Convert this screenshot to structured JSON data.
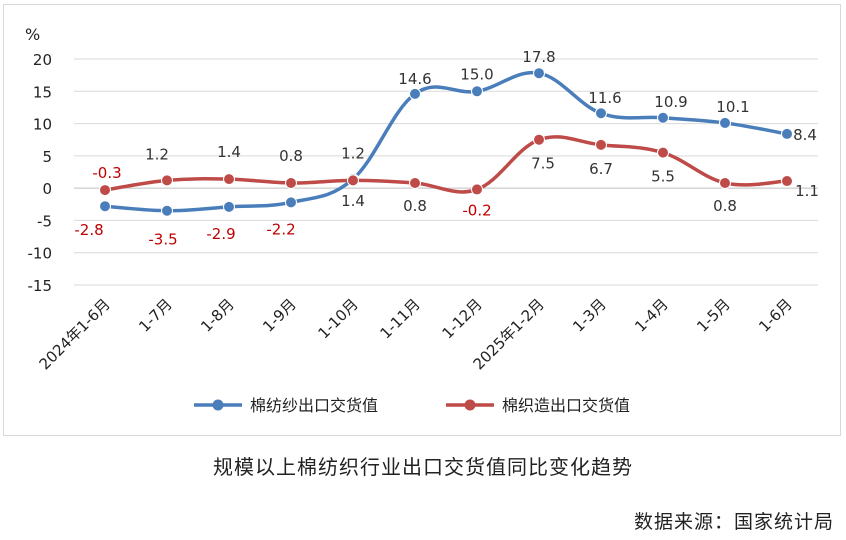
{
  "chart_data": {
    "type": "line",
    "ylabel": "%",
    "ylim": [
      -15,
      20
    ],
    "yticks": [
      20,
      15,
      10,
      5,
      0,
      -5,
      -10,
      -15
    ],
    "grid": "horizontal",
    "legend_position": "bottom",
    "categories": [
      "2024年1-6月",
      "1-7月",
      "1-8月",
      "1-9月",
      "1-10月",
      "1-11月",
      "1-12月",
      "2025年1-2月",
      "1-3月",
      "1-4月",
      "1-5月",
      "1-6月"
    ],
    "series": [
      {
        "name": "棉纺纱出口交货值",
        "color": "#4a7ebb",
        "values": [
          -2.8,
          -3.5,
          -2.9,
          -2.2,
          1.4,
          14.6,
          15.0,
          17.8,
          11.6,
          10.9,
          10.1,
          8.4
        ],
        "labels": [
          "-2.8",
          "-3.5",
          "-2.9",
          "-2.2",
          "1.4",
          "14.6",
          "15.0",
          "17.8",
          "11.6",
          "10.9",
          "10.1",
          "8.4"
        ],
        "label_colors": [
          "#c00000",
          "#c00000",
          "#c00000",
          "#c00000",
          "#333333",
          "#333333",
          "#333333",
          "#333333",
          "#333333",
          "#333333",
          "#333333",
          "#333333"
        ]
      },
      {
        "name": "棉织造出口交货值",
        "color": "#be4b48",
        "values": [
          -0.3,
          1.2,
          1.4,
          0.8,
          1.2,
          0.8,
          -0.2,
          7.5,
          6.7,
          5.5,
          0.8,
          1.1
        ],
        "labels": [
          "-0.3",
          "1.2",
          "1.4",
          "0.8",
          "1.2",
          "0.8",
          "-0.2",
          "7.5",
          "6.7",
          "5.5",
          "0.8",
          "1.1"
        ],
        "label_colors": [
          "#c00000",
          "#333333",
          "#333333",
          "#333333",
          "#333333",
          "#333333",
          "#c00000",
          "#333333",
          "#333333",
          "#333333",
          "#333333",
          "#333333"
        ]
      }
    ]
  },
  "caption": "规模以上棉纺织行业出口交货值同比变化趋势",
  "source": "数据来源：国家统计局"
}
